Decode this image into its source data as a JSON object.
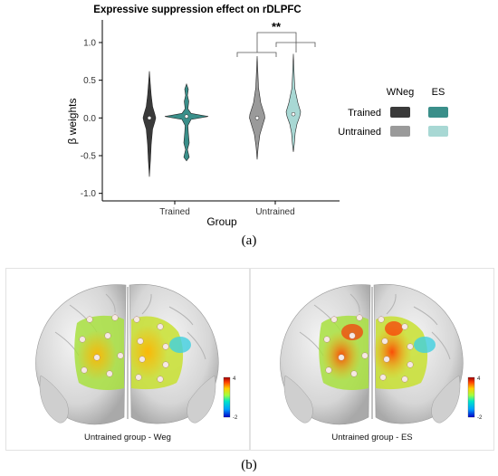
{
  "figure_a": {
    "caption": "(a)",
    "chart_data": {
      "type": "violin",
      "title": "Expressive suppression effect on rDLPFC",
      "xlabel": "Group",
      "ylabel": "β weights",
      "categories": [
        "Trained",
        "Untrained"
      ],
      "ylim": [
        -1.1,
        1.3
      ],
      "yticks": [
        "1.0",
        "0.5",
        "0.0",
        "-0.5",
        "-1.0"
      ],
      "ytick_values": [
        1.0,
        0.5,
        0.0,
        -0.5,
        -1.0
      ],
      "grid": false,
      "legend_placement": "right",
      "legend": {
        "columns": [
          "WNeg",
          "ES"
        ],
        "rows": [
          "Trained",
          "Untrained"
        ],
        "colors": [
          [
            "#3a3a3a",
            "#3a8f8a"
          ],
          [
            "#9a9a9a",
            "#a8d8d4"
          ]
        ]
      },
      "series": [
        {
          "name": "WNeg",
          "group": "Trained",
          "color": "#3a3a3a",
          "min": -0.78,
          "max": 0.62,
          "median": 0.0
        },
        {
          "name": "ES",
          "group": "Trained",
          "color": "#3a8f8a",
          "min": -0.57,
          "max": 0.45,
          "median": 0.02
        },
        {
          "name": "WNeg",
          "group": "Untrained",
          "color": "#9a9a9a",
          "min": -0.55,
          "max": 0.82,
          "median": 0.0
        },
        {
          "name": "ES",
          "group": "Untrained",
          "color": "#a8d8d4",
          "min": -0.45,
          "max": 0.85,
          "median": 0.05
        }
      ],
      "annotation": "**"
    }
  },
  "figure_b": {
    "caption": "(b)",
    "panels": [
      {
        "label": "Untrained group - Weg",
        "cbar_max": "4",
        "cbar_min": "-2"
      },
      {
        "label": "Untrained group - ES",
        "cbar_max": "4",
        "cbar_min": "-2"
      }
    ]
  }
}
